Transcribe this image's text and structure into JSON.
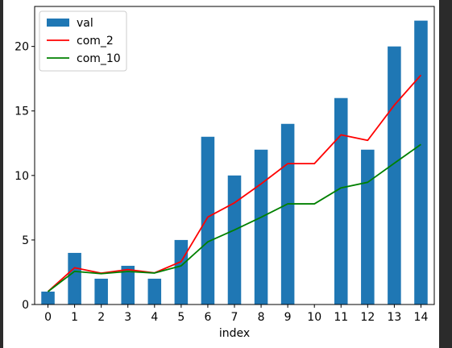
{
  "chart_data": {
    "type": "bar",
    "categories": [
      "0",
      "1",
      "2",
      "3",
      "4",
      "5",
      "6",
      "7",
      "8",
      "9",
      "10",
      "11",
      "12",
      "13",
      "14"
    ],
    "xlabel": "index",
    "ylabel": "",
    "ylim": [
      0,
      23.1
    ],
    "yticks": [
      0,
      5,
      10,
      15,
      20
    ],
    "legend": "top-left",
    "grid": false,
    "series": [
      {
        "name": "val",
        "kind": "bar",
        "color": "#1f77b4",
        "values": [
          1,
          4,
          2,
          3,
          2,
          5,
          13,
          10,
          12,
          14,
          null,
          16,
          12,
          20,
          22
        ]
      },
      {
        "name": "com_2",
        "kind": "line",
        "color": "#ff0000",
        "values": [
          1,
          2.85,
          2.43,
          2.71,
          2.45,
          3.33,
          6.78,
          7.88,
          9.35,
          10.92,
          10.92,
          13.15,
          12.72,
          15.45,
          17.78
        ]
      },
      {
        "name": "com_10",
        "kind": "line",
        "color": "#008000",
        "values": [
          1,
          2.57,
          2.39,
          2.56,
          2.44,
          3.0,
          4.86,
          5.78,
          6.76,
          7.8,
          7.8,
          9.04,
          9.47,
          10.95,
          12.41
        ]
      }
    ]
  }
}
